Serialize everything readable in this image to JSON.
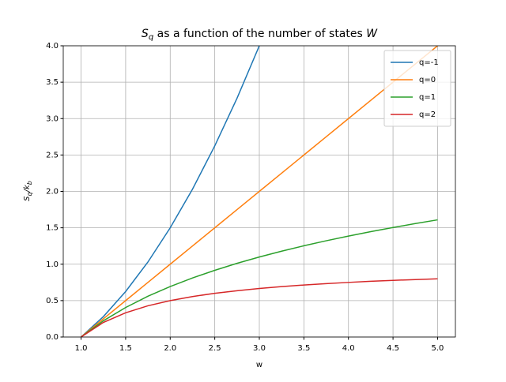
{
  "chart_data": {
    "type": "line",
    "title": [
      "S",
      "q",
      " as a function of the number of states ",
      "W"
    ],
    "xlabel": "w",
    "ylabel": [
      "S",
      "q",
      "/k",
      "b"
    ],
    "x": [
      1,
      1.25,
      1.5,
      1.75,
      2,
      2.25,
      2.5,
      2.75,
      3,
      3.25,
      3.5,
      3.75,
      4,
      4.25,
      4.5,
      4.75,
      5
    ],
    "series": [
      {
        "name": "q=-1",
        "color": "#1f77b4",
        "values": [
          0,
          0.28,
          0.625,
          1.03,
          1.5,
          2.03,
          2.625,
          3.28,
          4,
          null,
          null,
          null,
          null,
          null,
          null,
          null,
          null
        ]
      },
      {
        "name": "q=0",
        "color": "#ff7f0e",
        "values": [
          0,
          0.25,
          0.5,
          0.75,
          1,
          1.25,
          1.5,
          1.75,
          2,
          2.25,
          2.5,
          2.75,
          3,
          3.25,
          3.5,
          3.75,
          4
        ]
      },
      {
        "name": "q=1",
        "color": "#2ca02c",
        "values": [
          0,
          0.223,
          0.405,
          0.56,
          0.693,
          0.811,
          0.916,
          1.012,
          1.099,
          1.179,
          1.253,
          1.322,
          1.386,
          1.447,
          1.504,
          1.558,
          1.609
        ]
      },
      {
        "name": "q=2",
        "color": "#d62728",
        "values": [
          0,
          0.2,
          0.333,
          0.429,
          0.5,
          0.556,
          0.6,
          0.636,
          0.667,
          0.692,
          0.714,
          0.733,
          0.75,
          0.765,
          0.778,
          0.789,
          0.8
        ]
      }
    ],
    "xlim": [
      0.8,
      5.2
    ],
    "ylim": [
      0,
      4
    ],
    "xticks": [
      {
        "value": 1,
        "label": "1.0"
      },
      {
        "value": 1.5,
        "label": "1.5"
      },
      {
        "value": 2,
        "label": "2.0"
      },
      {
        "value": 2.5,
        "label": "2.5"
      },
      {
        "value": 3,
        "label": "3.0"
      },
      {
        "value": 3.5,
        "label": "3.5"
      },
      {
        "value": 4,
        "label": "4.0"
      },
      {
        "value": 4.5,
        "label": "4.5"
      },
      {
        "value": 5,
        "label": "5.0"
      }
    ],
    "yticks": [
      {
        "value": 0,
        "label": "0.0"
      },
      {
        "value": 0.5,
        "label": "0.5"
      },
      {
        "value": 1,
        "label": "1.0"
      },
      {
        "value": 1.5,
        "label": "1.5"
      },
      {
        "value": 2,
        "label": "2.0"
      },
      {
        "value": 2.5,
        "label": "2.5"
      },
      {
        "value": 3,
        "label": "3.0"
      },
      {
        "value": 3.5,
        "label": "3.5"
      },
      {
        "value": 4,
        "label": "4.0"
      }
    ],
    "grid": true,
    "legend": "upper right"
  }
}
